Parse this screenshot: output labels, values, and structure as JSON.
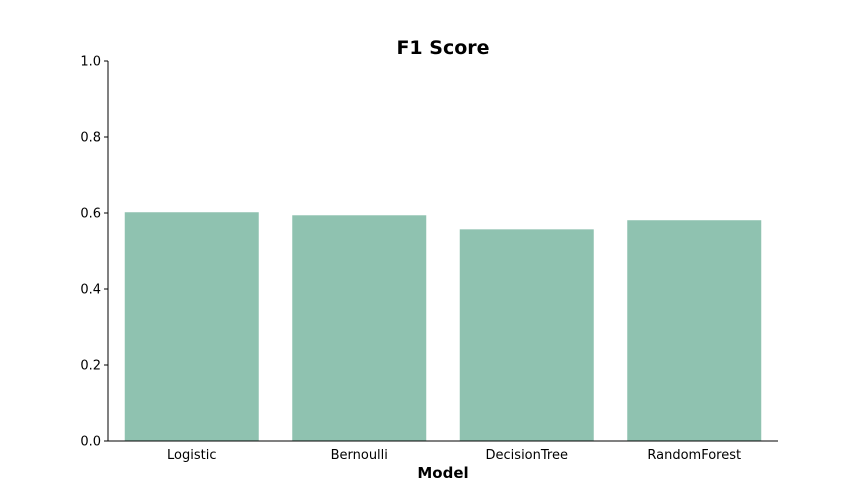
{
  "chart_data": {
    "type": "bar",
    "title": "F1 Score",
    "xlabel": "Model",
    "ylabel": "",
    "categories": [
      "Logistic",
      "Bernoulli",
      "DecisionTree",
      "RandomForest"
    ],
    "values": [
      0.602,
      0.594,
      0.557,
      0.581
    ],
    "ylim": [
      0,
      1.0
    ],
    "yticks": [
      "0.0",
      "0.2",
      "0.4",
      "0.6",
      "0.8",
      "1.0"
    ],
    "bar_color": "#8fc2b0",
    "grid": false,
    "legend": "none"
  }
}
